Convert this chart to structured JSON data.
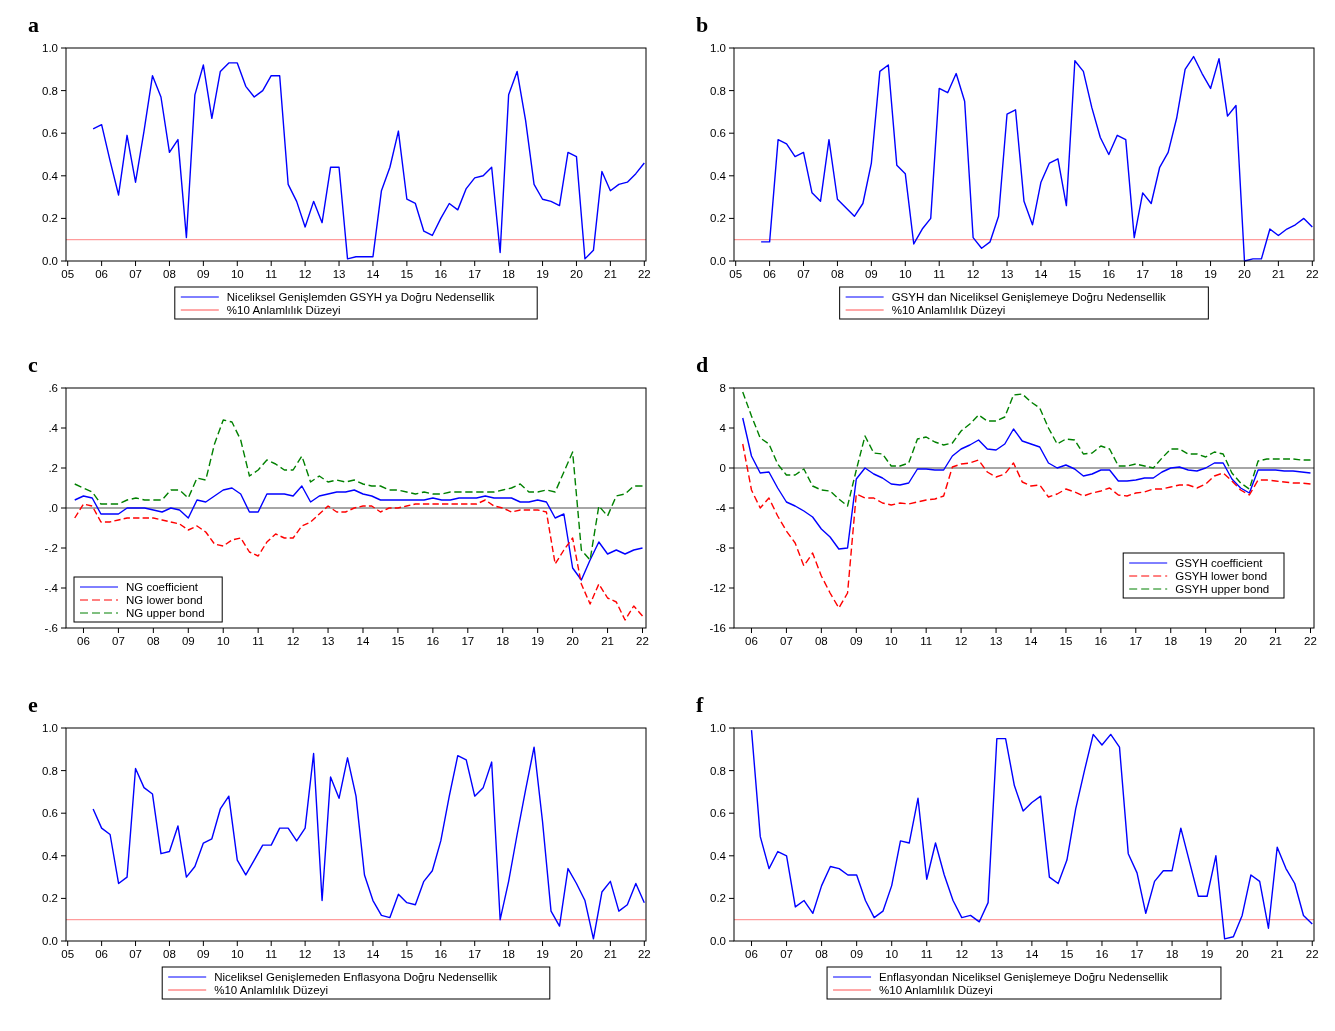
{
  "chart_data": [
    {
      "type": "line",
      "title": "a",
      "legend": "bottom",
      "xlim": [
        2004.95,
        2022.05
      ],
      "ylim": [
        0,
        1
      ],
      "xticks": [
        {
          "value": 2005,
          "label": "05"
        },
        {
          "value": 2006,
          "label": "06"
        },
        {
          "value": 2007,
          "label": "07"
        },
        {
          "value": 2008,
          "label": "08"
        },
        {
          "value": 2009,
          "label": "09"
        },
        {
          "value": 2010,
          "label": "10"
        },
        {
          "value": 2011,
          "label": "11"
        },
        {
          "value": 2012,
          "label": "12"
        },
        {
          "value": 2013,
          "label": "13"
        },
        {
          "value": 2014,
          "label": "14"
        },
        {
          "value": 2015,
          "label": "15"
        },
        {
          "value": 2016,
          "label": "16"
        },
        {
          "value": 2017,
          "label": "17"
        },
        {
          "value": 2018,
          "label": "18"
        },
        {
          "value": 2019,
          "label": "19"
        },
        {
          "value": 2020,
          "label": "20"
        },
        {
          "value": 2021,
          "label": "21"
        },
        {
          "value": 2022,
          "label": "22"
        }
      ],
      "yticks": [
        {
          "value": 0,
          "label": "0.0"
        },
        {
          "value": 0.2,
          "label": "0.2"
        },
        {
          "value": 0.4,
          "label": "0.4"
        },
        {
          "value": 0.6,
          "label": "0.6"
        },
        {
          "value": 0.8,
          "label": "0.8"
        },
        {
          "value": 1,
          "label": "1.0"
        }
      ],
      "x": [
        2005.75,
        2006,
        2006.25,
        2006.5,
        2006.75,
        2007,
        2007.25,
        2007.5,
        2007.75,
        2008,
        2008.25,
        2008.5,
        2008.75,
        2009,
        2009.25,
        2009.5,
        2009.75,
        2010,
        2010.25,
        2010.5,
        2010.75,
        2011,
        2011.25,
        2011.5,
        2011.75,
        2012,
        2012.25,
        2012.5,
        2012.75,
        2013,
        2013.25,
        2013.5,
        2013.75,
        2014,
        2014.25,
        2014.5,
        2014.75,
        2015,
        2015.25,
        2015.5,
        2015.75,
        2016,
        2016.25,
        2016.5,
        2016.75,
        2017,
        2017.25,
        2017.5,
        2017.75,
        2018,
        2018.25,
        2018.5,
        2018.75,
        2019,
        2019.25,
        2019.5,
        2019.75,
        2020,
        2020.25,
        2020.5,
        2020.75,
        2021,
        2021.25,
        2021.5,
        2021.75,
        2022
      ],
      "series": [
        {
          "name": "Niceliksel Genişlemden GSYH ya Doğru Nedensellik",
          "color": "#0000ff",
          "line_style": "solid",
          "values": [
            0.62,
            0.64,
            0.47,
            0.31,
            0.59,
            0.37,
            0.61,
            0.87,
            0.77,
            0.51,
            0.57,
            0.11,
            0.78,
            0.92,
            0.67,
            0.89,
            0.93,
            0.93,
            0.82,
            0.77,
            0.8,
            0.87,
            0.87,
            0.36,
            0.28,
            0.16,
            0.28,
            0.18,
            0.44,
            0.44,
            0.01,
            0.02,
            0.02,
            0.02,
            0.33,
            0.44,
            0.61,
            0.29,
            0.27,
            0.14,
            0.12,
            0.2,
            0.27,
            0.24,
            0.34,
            0.39,
            0.4,
            0.44,
            0.04,
            0.78,
            0.89,
            0.66,
            0.36,
            0.29,
            0.28,
            0.26,
            0.51,
            0.49,
            0.01,
            0.05,
            0.42,
            0.33,
            0.36,
            0.37,
            0.41,
            0.46
          ]
        }
      ],
      "ref_lines": [
        {
          "axis": "y",
          "value": 0.1,
          "label": "%10 Anlamlılık Düzeyi",
          "color": "#ff5050"
        }
      ]
    },
    {
      "type": "line",
      "title": "b",
      "legend": "bottom",
      "xlim": [
        2004.95,
        2022.05
      ],
      "ylim": [
        0,
        1
      ],
      "xticks": [
        {
          "value": 2005,
          "label": "05"
        },
        {
          "value": 2006,
          "label": "06"
        },
        {
          "value": 2007,
          "label": "07"
        },
        {
          "value": 2008,
          "label": "08"
        },
        {
          "value": 2009,
          "label": "09"
        },
        {
          "value": 2010,
          "label": "10"
        },
        {
          "value": 2011,
          "label": "11"
        },
        {
          "value": 2012,
          "label": "12"
        },
        {
          "value": 2013,
          "label": "13"
        },
        {
          "value": 2014,
          "label": "14"
        },
        {
          "value": 2015,
          "label": "15"
        },
        {
          "value": 2016,
          "label": "16"
        },
        {
          "value": 2017,
          "label": "17"
        },
        {
          "value": 2018,
          "label": "18"
        },
        {
          "value": 2019,
          "label": "19"
        },
        {
          "value": 2020,
          "label": "20"
        },
        {
          "value": 2021,
          "label": "21"
        },
        {
          "value": 2022,
          "label": "22"
        }
      ],
      "yticks": [
        {
          "value": 0,
          "label": "0.0"
        },
        {
          "value": 0.2,
          "label": "0.2"
        },
        {
          "value": 0.4,
          "label": "0.4"
        },
        {
          "value": 0.6,
          "label": "0.6"
        },
        {
          "value": 0.8,
          "label": "0.8"
        },
        {
          "value": 1,
          "label": "1.0"
        }
      ],
      "x": [
        2005.75,
        2006,
        2006.25,
        2006.5,
        2006.75,
        2007,
        2007.25,
        2007.5,
        2007.75,
        2008,
        2008.25,
        2008.5,
        2008.75,
        2009,
        2009.25,
        2009.5,
        2009.75,
        2010,
        2010.25,
        2010.5,
        2010.75,
        2011,
        2011.25,
        2011.5,
        2011.75,
        2012,
        2012.25,
        2012.5,
        2012.75,
        2013,
        2013.25,
        2013.5,
        2013.75,
        2014,
        2014.25,
        2014.5,
        2014.75,
        2015,
        2015.25,
        2015.5,
        2015.75,
        2016,
        2016.25,
        2016.5,
        2016.75,
        2017,
        2017.25,
        2017.5,
        2017.75,
        2018,
        2018.25,
        2018.5,
        2018.75,
        2019,
        2019.25,
        2019.5,
        2019.75,
        2020,
        2020.25,
        2020.5,
        2020.75,
        2021,
        2021.25,
        2021.5,
        2021.75,
        2022
      ],
      "series": [
        {
          "name": "GSYH dan Niceliksel Genişlemeye Doğru Nedensellik",
          "color": "#0000ff",
          "line_style": "solid",
          "values": [
            0.09,
            0.09,
            0.57,
            0.55,
            0.49,
            0.51,
            0.32,
            0.28,
            0.57,
            0.29,
            0.25,
            0.21,
            0.27,
            0.46,
            0.89,
            0.92,
            0.45,
            0.41,
            0.08,
            0.15,
            0.2,
            0.81,
            0.79,
            0.88,
            0.75,
            0.11,
            0.06,
            0.09,
            0.21,
            0.69,
            0.71,
            0.28,
            0.17,
            0.37,
            0.46,
            0.48,
            0.26,
            0.94,
            0.89,
            0.72,
            0.58,
            0.5,
            0.59,
            0.57,
            0.11,
            0.32,
            0.27,
            0.44,
            0.51,
            0.67,
            0.9,
            0.96,
            0.88,
            0.81,
            0.95,
            0.68,
            0.73,
            0.0,
            0.01,
            0.01,
            0.15,
            0.12,
            0.15,
            0.17,
            0.2,
            0.16
          ]
        }
      ],
      "ref_lines": [
        {
          "axis": "y",
          "value": 0.1,
          "label": "%10 Anlamlılık Düzeyi",
          "color": "#ff5050"
        }
      ]
    },
    {
      "type": "line",
      "title": "c",
      "legend": "bottom left",
      "xlim": [
        2005.5,
        2022.1
      ],
      "ylim": [
        -0.6,
        0.6
      ],
      "xticks": [
        {
          "value": 2006,
          "label": "06"
        },
        {
          "value": 2007,
          "label": "07"
        },
        {
          "value": 2008,
          "label": "08"
        },
        {
          "value": 2009,
          "label": "09"
        },
        {
          "value": 2010,
          "label": "10"
        },
        {
          "value": 2011,
          "label": "11"
        },
        {
          "value": 2012,
          "label": "12"
        },
        {
          "value": 2013,
          "label": "13"
        },
        {
          "value": 2014,
          "label": "14"
        },
        {
          "value": 2015,
          "label": "15"
        },
        {
          "value": 2016,
          "label": "16"
        },
        {
          "value": 2017,
          "label": "17"
        },
        {
          "value": 2018,
          "label": "18"
        },
        {
          "value": 2019,
          "label": "19"
        },
        {
          "value": 2020,
          "label": "20"
        },
        {
          "value": 2021,
          "label": "21"
        },
        {
          "value": 2022,
          "label": "22"
        }
      ],
      "yticks": [
        {
          "value": -0.6,
          "label": "-.6"
        },
        {
          "value": -0.4,
          "label": "-.4"
        },
        {
          "value": -0.2,
          "label": "-.2"
        },
        {
          "value": 0,
          "label": ".0"
        },
        {
          "value": 0.2,
          "label": ".2"
        },
        {
          "value": 0.4,
          "label": ".4"
        },
        {
          "value": 0.6,
          "label": ".6"
        }
      ],
      "x": [
        2005.75,
        2006,
        2006.25,
        2006.5,
        2006.75,
        2007,
        2007.25,
        2007.5,
        2007.75,
        2008,
        2008.25,
        2008.5,
        2008.75,
        2009,
        2009.25,
        2009.5,
        2009.75,
        2010,
        2010.25,
        2010.5,
        2010.75,
        2011,
        2011.25,
        2011.5,
        2011.75,
        2012,
        2012.25,
        2012.5,
        2012.75,
        2013,
        2013.25,
        2013.5,
        2013.75,
        2014,
        2014.25,
        2014.5,
        2014.75,
        2015,
        2015.25,
        2015.5,
        2015.75,
        2016,
        2016.25,
        2016.5,
        2016.75,
        2017,
        2017.25,
        2017.5,
        2017.75,
        2018,
        2018.25,
        2018.5,
        2018.75,
        2019,
        2019.25,
        2019.5,
        2019.75,
        2020,
        2020.25,
        2020.5,
        2020.75,
        2021,
        2021.25,
        2021.5,
        2021.75,
        2022
      ],
      "series": [
        {
          "name": "NG coefficient",
          "color": "#0000ff",
          "line_style": "solid",
          "values": [
            0.04,
            0.06,
            0.05,
            -0.03,
            -0.03,
            -0.03,
            0.0,
            0.0,
            0.0,
            -0.01,
            -0.02,
            0.0,
            -0.01,
            -0.05,
            0.04,
            0.03,
            0.06,
            0.09,
            0.1,
            0.07,
            -0.02,
            -0.02,
            0.07,
            0.07,
            0.07,
            0.06,
            0.11,
            0.03,
            0.06,
            0.07,
            0.08,
            0.08,
            0.09,
            0.07,
            0.06,
            0.04,
            0.04,
            0.04,
            0.04,
            0.04,
            0.04,
            0.05,
            0.04,
            0.04,
            0.05,
            0.05,
            0.05,
            0.06,
            0.05,
            0.05,
            0.05,
            0.03,
            0.03,
            0.04,
            0.03,
            -0.05,
            -0.03,
            -0.3,
            -0.36,
            -0.26,
            -0.17,
            -0.23,
            -0.21,
            -0.23,
            -0.21,
            -0.2
          ]
        },
        {
          "name": "NG lower bond",
          "color": "#ff0000",
          "line_style": "dashed",
          "values": [
            -0.05,
            0.02,
            0.01,
            -0.07,
            -0.07,
            -0.06,
            -0.05,
            -0.05,
            -0.05,
            -0.05,
            -0.06,
            -0.07,
            -0.08,
            -0.11,
            -0.09,
            -0.12,
            -0.18,
            -0.19,
            -0.16,
            -0.15,
            -0.22,
            -0.24,
            -0.17,
            -0.13,
            -0.15,
            -0.15,
            -0.09,
            -0.07,
            -0.03,
            0.01,
            -0.02,
            -0.02,
            0.0,
            0.01,
            0.01,
            -0.02,
            0.0,
            0.0,
            0.01,
            0.02,
            0.02,
            0.02,
            0.02,
            0.02,
            0.02,
            0.02,
            0.02,
            0.04,
            0.01,
            0.0,
            -0.02,
            -0.01,
            -0.01,
            -0.01,
            -0.02,
            -0.28,
            -0.21,
            -0.15,
            -0.38,
            -0.48,
            -0.38,
            -0.45,
            -0.47,
            -0.56,
            -0.49,
            -0.54
          ]
        },
        {
          "name": "NG upper bond",
          "color": "#008000",
          "line_style": "dashed",
          "values": [
            0.12,
            0.1,
            0.08,
            0.02,
            0.02,
            0.02,
            0.04,
            0.05,
            0.04,
            0.04,
            0.04,
            0.09,
            0.09,
            0.05,
            0.15,
            0.14,
            0.32,
            0.44,
            0.43,
            0.34,
            0.16,
            0.19,
            0.24,
            0.22,
            0.19,
            0.19,
            0.26,
            0.13,
            0.16,
            0.13,
            0.14,
            0.13,
            0.14,
            0.12,
            0.11,
            0.11,
            0.09,
            0.09,
            0.08,
            0.07,
            0.08,
            0.07,
            0.07,
            0.08,
            0.08,
            0.08,
            0.08,
            0.08,
            0.08,
            0.09,
            0.1,
            0.12,
            0.08,
            0.08,
            0.09,
            0.08,
            0.18,
            0.28,
            -0.21,
            -0.26,
            0.01,
            -0.04,
            0.06,
            0.07,
            0.11,
            0.11
          ]
        }
      ],
      "ref_lines": [
        {
          "axis": "y",
          "value": 0,
          "color": "#000000"
        }
      ]
    },
    {
      "type": "line",
      "title": "d",
      "legend": "bottom right",
      "xlim": [
        2005.5,
        2022.1
      ],
      "ylim": [
        -16,
        8
      ],
      "xticks": [
        {
          "value": 2006,
          "label": "06"
        },
        {
          "value": 2007,
          "label": "07"
        },
        {
          "value": 2008,
          "label": "08"
        },
        {
          "value": 2009,
          "label": "09"
        },
        {
          "value": 2010,
          "label": "10"
        },
        {
          "value": 2011,
          "label": "11"
        },
        {
          "value": 2012,
          "label": "12"
        },
        {
          "value": 2013,
          "label": "13"
        },
        {
          "value": 2014,
          "label": "14"
        },
        {
          "value": 2015,
          "label": "15"
        },
        {
          "value": 2016,
          "label": "16"
        },
        {
          "value": 2017,
          "label": "17"
        },
        {
          "value": 2018,
          "label": "18"
        },
        {
          "value": 2019,
          "label": "19"
        },
        {
          "value": 2020,
          "label": "20"
        },
        {
          "value": 2021,
          "label": "21"
        },
        {
          "value": 2022,
          "label": "22"
        }
      ],
      "yticks": [
        -16,
        -12,
        -8,
        -4,
        0,
        4,
        8
      ],
      "x": [
        2005.75,
        2006,
        2006.25,
        2006.5,
        2006.75,
        2007,
        2007.25,
        2007.5,
        2007.75,
        2008,
        2008.25,
        2008.5,
        2008.75,
        2009,
        2009.25,
        2009.5,
        2009.75,
        2010,
        2010.25,
        2010.5,
        2010.75,
        2011,
        2011.25,
        2011.5,
        2011.75,
        2012,
        2012.25,
        2012.5,
        2012.75,
        2013,
        2013.25,
        2013.5,
        2013.75,
        2014,
        2014.25,
        2014.5,
        2014.75,
        2015,
        2015.25,
        2015.5,
        2015.75,
        2016,
        2016.25,
        2016.5,
        2016.75,
        2017,
        2017.25,
        2017.5,
        2017.75,
        2018,
        2018.25,
        2018.5,
        2018.75,
        2019,
        2019.25,
        2019.5,
        2019.75,
        2020,
        2020.25,
        2020.5,
        2020.75,
        2021,
        2021.25,
        2021.5,
        2021.75,
        2022
      ],
      "series": [
        {
          "name": "GSYH coefficient",
          "color": "#0000ff",
          "line_style": "solid",
          "values": [
            5.0,
            1.2,
            -0.5,
            -0.4,
            -2.0,
            -3.4,
            -3.8,
            -4.3,
            -4.9,
            -6.1,
            -6.9,
            -8.1,
            -8.0,
            -1.1,
            0.0,
            -0.6,
            -1.0,
            -1.6,
            -1.7,
            -1.5,
            -0.1,
            -0.1,
            -0.2,
            -0.2,
            1.2,
            1.9,
            2.3,
            2.8,
            1.9,
            1.8,
            2.4,
            3.9,
            2.7,
            2.4,
            2.1,
            0.5,
            0.0,
            0.3,
            -0.1,
            -0.8,
            -0.6,
            -0.2,
            -0.2,
            -1.3,
            -1.3,
            -1.2,
            -1.0,
            -1.0,
            -0.4,
            0.0,
            0.1,
            -0.2,
            -0.3,
            0.0,
            0.5,
            0.5,
            -1.1,
            -2.0,
            -2.5,
            -0.2,
            -0.2,
            -0.2,
            -0.3,
            -0.3,
            -0.4,
            -0.5
          ]
        },
        {
          "name": "GSYH lower bond",
          "color": "#ff0000",
          "line_style": "dashed",
          "values": [
            2.4,
            -2.2,
            -4.0,
            -3.0,
            -4.8,
            -6.3,
            -7.5,
            -9.8,
            -8.5,
            -10.8,
            -12.5,
            -14.0,
            -12.5,
            -2.6,
            -3.0,
            -3.0,
            -3.5,
            -3.7,
            -3.5,
            -3.6,
            -3.4,
            -3.2,
            -3.1,
            -2.8,
            0.1,
            0.4,
            0.5,
            0.8,
            -0.4,
            -0.9,
            -0.6,
            0.5,
            -1.4,
            -1.8,
            -1.7,
            -2.9,
            -2.6,
            -2.1,
            -2.4,
            -2.8,
            -2.5,
            -2.3,
            -2.0,
            -2.7,
            -2.8,
            -2.5,
            -2.4,
            -2.1,
            -2.1,
            -1.9,
            -1.7,
            -1.7,
            -2.0,
            -1.6,
            -0.8,
            -0.5,
            -1.3,
            -2.2,
            -2.7,
            -1.2,
            -1.2,
            -1.3,
            -1.4,
            -1.5,
            -1.5,
            -1.6
          ]
        },
        {
          "name": "GSYH upper bond",
          "color": "#008000",
          "line_style": "dashed",
          "values": [
            7.6,
            5.2,
            3.0,
            2.4,
            0.4,
            -0.7,
            -0.7,
            -0.1,
            -1.8,
            -2.2,
            -2.3,
            -3.1,
            -3.8,
            -0.2,
            3.2,
            1.5,
            1.4,
            0.2,
            0.2,
            0.5,
            2.9,
            3.1,
            2.6,
            2.3,
            2.5,
            3.7,
            4.4,
            5.3,
            4.7,
            4.7,
            5.1,
            7.3,
            7.4,
            6.6,
            6.0,
            4.0,
            2.4,
            2.9,
            2.8,
            1.4,
            1.5,
            2.2,
            1.9,
            0.2,
            0.2,
            0.4,
            0.2,
            0.0,
            1.0,
            1.9,
            1.9,
            1.4,
            1.4,
            1.1,
            1.6,
            1.4,
            -0.5,
            -1.5,
            -2.1,
            0.7,
            0.9,
            0.9,
            0.9,
            0.9,
            0.8,
            0.8
          ]
        }
      ],
      "ref_lines": [
        {
          "axis": "y",
          "value": 0,
          "color": "#000000"
        }
      ]
    },
    {
      "type": "line",
      "title": "e",
      "legend": "bottom",
      "xlim": [
        2004.95,
        2022.05
      ],
      "ylim": [
        0,
        1
      ],
      "xticks": [
        {
          "value": 2005,
          "label": "05"
        },
        {
          "value": 2006,
          "label": "06"
        },
        {
          "value": 2007,
          "label": "07"
        },
        {
          "value": 2008,
          "label": "08"
        },
        {
          "value": 2009,
          "label": "09"
        },
        {
          "value": 2010,
          "label": "10"
        },
        {
          "value": 2011,
          "label": "11"
        },
        {
          "value": 2012,
          "label": "12"
        },
        {
          "value": 2013,
          "label": "13"
        },
        {
          "value": 2014,
          "label": "14"
        },
        {
          "value": 2015,
          "label": "15"
        },
        {
          "value": 2016,
          "label": "16"
        },
        {
          "value": 2017,
          "label": "17"
        },
        {
          "value": 2018,
          "label": "18"
        },
        {
          "value": 2019,
          "label": "19"
        },
        {
          "value": 2020,
          "label": "20"
        },
        {
          "value": 2021,
          "label": "21"
        },
        {
          "value": 2022,
          "label": "22"
        }
      ],
      "yticks": [
        {
          "value": 0,
          "label": "0.0"
        },
        {
          "value": 0.2,
          "label": "0.2"
        },
        {
          "value": 0.4,
          "label": "0.4"
        },
        {
          "value": 0.6,
          "label": "0.6"
        },
        {
          "value": 0.8,
          "label": "0.8"
        },
        {
          "value": 1,
          "label": "1.0"
        }
      ],
      "x": [
        2005.75,
        2006,
        2006.25,
        2006.5,
        2006.75,
        2007,
        2007.25,
        2007.5,
        2007.75,
        2008,
        2008.25,
        2008.5,
        2008.75,
        2009,
        2009.25,
        2009.5,
        2009.75,
        2010,
        2010.25,
        2010.5,
        2010.75,
        2011,
        2011.25,
        2011.5,
        2011.75,
        2012,
        2012.25,
        2012.5,
        2012.75,
        2013,
        2013.25,
        2013.5,
        2013.75,
        2014,
        2014.25,
        2014.5,
        2014.75,
        2015,
        2015.25,
        2015.5,
        2015.75,
        2016,
        2016.25,
        2016.5,
        2016.75,
        2017,
        2017.25,
        2017.5,
        2017.75,
        2018,
        2018.25,
        2018.5,
        2018.75,
        2019,
        2019.25,
        2019.5,
        2019.75,
        2020,
        2020.25,
        2020.5,
        2020.75,
        2021,
        2021.25,
        2021.5,
        2021.75,
        2022
      ],
      "series": [
        {
          "name": "Niceliksel Genişlemeden Enflasyona Doğru Nedensellik",
          "color": "#0000ff",
          "line_style": "solid",
          "values": [
            0.62,
            0.53,
            0.5,
            0.27,
            0.3,
            0.81,
            0.72,
            0.69,
            0.41,
            0.42,
            0.54,
            0.3,
            0.35,
            0.46,
            0.48,
            0.62,
            0.68,
            0.38,
            0.31,
            0.38,
            0.45,
            0.45,
            0.53,
            0.53,
            0.47,
            0.53,
            0.88,
            0.19,
            0.77,
            0.67,
            0.86,
            0.68,
            0.31,
            0.19,
            0.12,
            0.11,
            0.22,
            0.18,
            0.17,
            0.28,
            0.33,
            0.47,
            0.68,
            0.87,
            0.85,
            0.68,
            0.72,
            0.84,
            0.1,
            0.28,
            0.5,
            0.71,
            0.91,
            0.56,
            0.14,
            0.07,
            0.34,
            0.27,
            0.19,
            0.01,
            0.23,
            0.28,
            0.14,
            0.17,
            0.27,
            0.18
          ]
        }
      ],
      "ref_lines": [
        {
          "axis": "y",
          "value": 0.1,
          "label": "%10 Anlamlılık Düzeyi",
          "color": "#ff5050"
        }
      ]
    },
    {
      "type": "line",
      "title": "f",
      "legend": "bottom",
      "xlim": [
        2005.5,
        2022.05
      ],
      "ylim": [
        0,
        1
      ],
      "xticks": [
        {
          "value": 2006,
          "label": "06"
        },
        {
          "value": 2007,
          "label": "07"
        },
        {
          "value": 2008,
          "label": "08"
        },
        {
          "value": 2009,
          "label": "09"
        },
        {
          "value": 2010,
          "label": "10"
        },
        {
          "value": 2011,
          "label": "11"
        },
        {
          "value": 2012,
          "label": "12"
        },
        {
          "value": 2013,
          "label": "13"
        },
        {
          "value": 2014,
          "label": "14"
        },
        {
          "value": 2015,
          "label": "15"
        },
        {
          "value": 2016,
          "label": "16"
        },
        {
          "value": 2017,
          "label": "17"
        },
        {
          "value": 2018,
          "label": "18"
        },
        {
          "value": 2019,
          "label": "19"
        },
        {
          "value": 2020,
          "label": "20"
        },
        {
          "value": 2021,
          "label": "21"
        },
        {
          "value": 2022,
          "label": "22"
        }
      ],
      "yticks": [
        {
          "value": 0,
          "label": "0.0"
        },
        {
          "value": 0.2,
          "label": "0.2"
        },
        {
          "value": 0.4,
          "label": "0.4"
        },
        {
          "value": 0.6,
          "label": "0.6"
        },
        {
          "value": 0.8,
          "label": "0.8"
        },
        {
          "value": 1,
          "label": "1.0"
        }
      ],
      "x": [
        2006,
        2006.25,
        2006.5,
        2006.75,
        2007,
        2007.25,
        2007.5,
        2007.75,
        2008,
        2008.25,
        2008.5,
        2008.75,
        2009,
        2009.25,
        2009.5,
        2009.75,
        2010,
        2010.25,
        2010.5,
        2010.75,
        2011,
        2011.25,
        2011.5,
        2011.75,
        2012,
        2012.25,
        2012.5,
        2012.75,
        2013,
        2013.25,
        2013.5,
        2013.75,
        2014,
        2014.25,
        2014.5,
        2014.75,
        2015,
        2015.25,
        2015.5,
        2015.75,
        2016,
        2016.25,
        2016.5,
        2016.75,
        2017,
        2017.25,
        2017.5,
        2017.75,
        2018,
        2018.25,
        2018.5,
        2018.75,
        2019,
        2019.25,
        2019.5,
        2019.75,
        2020,
        2020.25,
        2020.5,
        2020.75,
        2021,
        2021.25,
        2021.5,
        2021.75,
        2022
      ],
      "series": [
        {
          "name": "Enflasyondan Niceliksel Genişlemeye Doğru Nedensellik",
          "color": "#0000ff",
          "line_style": "solid",
          "values": [
            0.99,
            0.49,
            0.34,
            0.42,
            0.4,
            0.16,
            0.19,
            0.13,
            0.26,
            0.35,
            0.34,
            0.31,
            0.31,
            0.19,
            0.11,
            0.14,
            0.26,
            0.47,
            0.46,
            0.67,
            0.29,
            0.46,
            0.31,
            0.19,
            0.11,
            0.12,
            0.09,
            0.18,
            0.95,
            0.95,
            0.73,
            0.61,
            0.65,
            0.68,
            0.3,
            0.27,
            0.38,
            0.62,
            0.8,
            0.97,
            0.92,
            0.97,
            0.91,
            0.41,
            0.32,
            0.13,
            0.28,
            0.33,
            0.33,
            0.53,
            0.37,
            0.21,
            0.21,
            0.4,
            0.01,
            0.02,
            0.12,
            0.31,
            0.28,
            0.06,
            0.44,
            0.34,
            0.27,
            0.12,
            0.08
          ]
        }
      ],
      "ref_lines": [
        {
          "axis": "y",
          "value": 0.1,
          "label": "%10 Anlamlılık Düzeyi",
          "color": "#ff5050"
        }
      ]
    }
  ]
}
